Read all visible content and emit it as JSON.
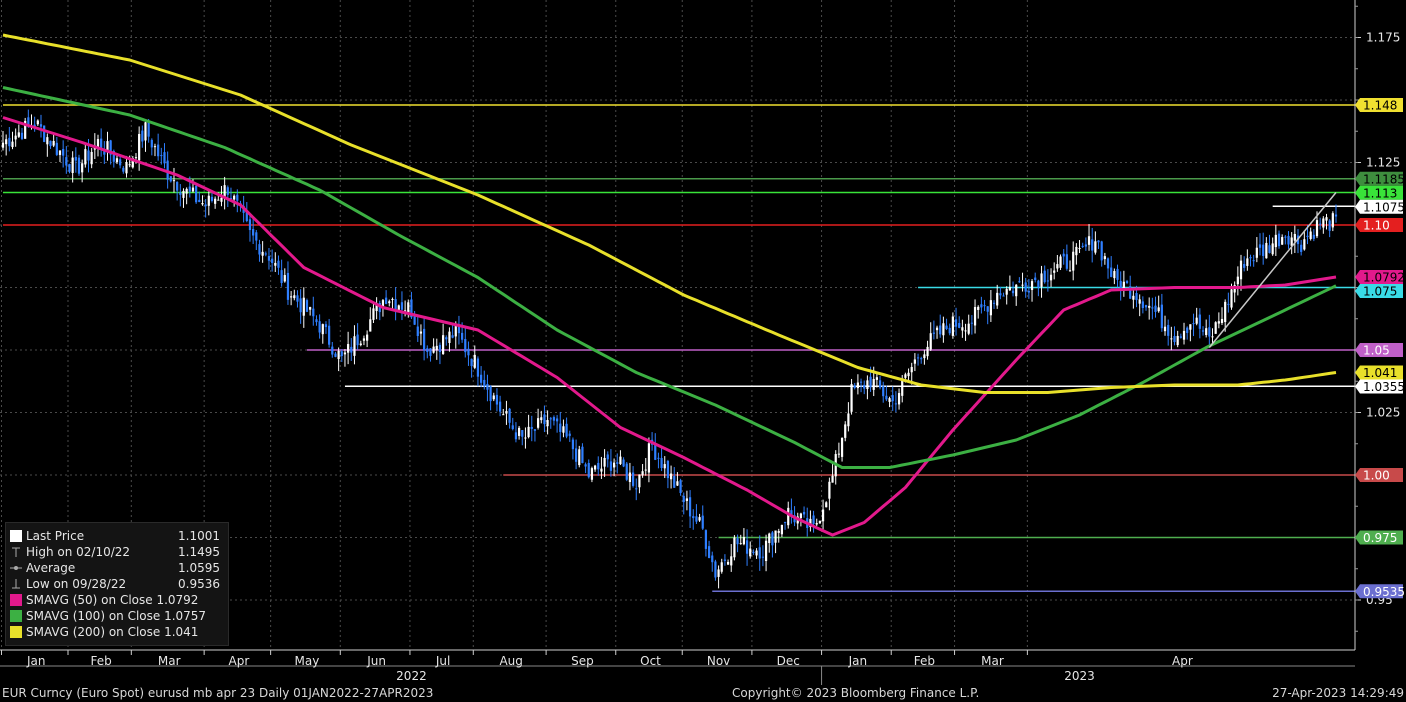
{
  "chart_data": {
    "type": "candlestick",
    "y_ticks": [
      "1.175",
      "1.125",
      "1.025",
      "0.95"
    ],
    "y_ticks_num": [
      1.175,
      1.125,
      1.025,
      0.95
    ],
    "ylim": [
      0.93,
      1.19
    ],
    "x_months": [
      "Jan",
      "Feb",
      "Mar",
      "Apr",
      "May",
      "Jun",
      "Jul",
      "Aug",
      "Sep",
      "Oct",
      "Nov",
      "Dec",
      "Jan",
      "Feb",
      "Mar",
      "Apr"
    ],
    "x_years": [
      "2022",
      "2023"
    ],
    "price_anchors": [
      [
        0,
        1.133
      ],
      [
        10,
        1.141
      ],
      [
        23,
        1.122
      ],
      [
        30,
        1.133
      ],
      [
        39,
        1.123
      ],
      [
        45,
        1.138
      ],
      [
        52,
        1.121
      ],
      [
        58,
        1.113
      ],
      [
        64,
        1.108
      ],
      [
        71,
        1.115
      ],
      [
        78,
        1.096
      ],
      [
        84,
        1.088
      ],
      [
        90,
        1.074
      ],
      [
        100,
        1.06
      ],
      [
        107,
        1.046
      ],
      [
        114,
        1.058
      ],
      [
        121,
        1.072
      ],
      [
        129,
        1.066
      ],
      [
        134,
        1.05
      ],
      [
        143,
        1.057
      ],
      [
        149,
        1.045
      ],
      [
        158,
        1.024
      ],
      [
        164,
        1.014
      ],
      [
        172,
        1.022
      ],
      [
        179,
        1.013
      ],
      [
        185,
        1.0
      ],
      [
        193,
        1.006
      ],
      [
        200,
        0.997
      ],
      [
        205,
        1.012
      ],
      [
        214,
        0.992
      ],
      [
        221,
        0.978
      ],
      [
        225,
        0.961
      ],
      [
        231,
        0.973
      ],
      [
        240,
        0.97
      ],
      [
        248,
        0.985
      ],
      [
        256,
        0.978
      ],
      [
        262,
        0.999
      ],
      [
        268,
        1.033
      ],
      [
        274,
        1.038
      ],
      [
        281,
        1.029
      ],
      [
        290,
        1.05
      ],
      [
        299,
        1.06
      ],
      [
        306,
        1.062
      ],
      [
        314,
        1.073
      ],
      [
        324,
        1.077
      ],
      [
        333,
        1.083
      ],
      [
        340,
        1.088
      ],
      [
        345,
        1.095
      ],
      [
        351,
        1.078
      ],
      [
        358,
        1.073
      ],
      [
        364,
        1.065
      ],
      [
        370,
        1.056
      ],
      [
        376,
        1.062
      ],
      [
        381,
        1.054
      ],
      [
        386,
        1.067
      ],
      [
        392,
        1.086
      ],
      [
        398,
        1.09
      ],
      [
        405,
        1.097
      ],
      [
        410,
        1.093
      ],
      [
        416,
        1.101
      ],
      [
        421,
        1.101
      ]
    ],
    "series": [
      {
        "name": "SMAVG (50)",
        "color": "#e2198c",
        "points": [
          [
            0,
            1.143
          ],
          [
            25,
            1.133
          ],
          [
            55,
            1.12
          ],
          [
            75,
            1.108
          ],
          [
            95,
            1.083
          ],
          [
            120,
            1.067
          ],
          [
            150,
            1.058
          ],
          [
            175,
            1.039
          ],
          [
            195,
            1.019
          ],
          [
            215,
            1.007
          ],
          [
            235,
            0.994
          ],
          [
            250,
            0.983
          ],
          [
            262,
            0.976
          ],
          [
            272,
            0.981
          ],
          [
            285,
            0.995
          ],
          [
            300,
            1.018
          ],
          [
            320,
            1.046
          ],
          [
            335,
            1.066
          ],
          [
            350,
            1.074
          ],
          [
            370,
            1.075
          ],
          [
            390,
            1.075
          ],
          [
            405,
            1.076
          ],
          [
            421,
            1.0792
          ]
        ]
      },
      {
        "name": "SMAVG (100)",
        "color": "#3cb043",
        "points": [
          [
            0,
            1.155
          ],
          [
            40,
            1.144
          ],
          [
            70,
            1.131
          ],
          [
            100,
            1.114
          ],
          [
            125,
            1.096
          ],
          [
            150,
            1.079
          ],
          [
            175,
            1.058
          ],
          [
            200,
            1.041
          ],
          [
            225,
            1.028
          ],
          [
            250,
            1.013
          ],
          [
            265,
            1.003
          ],
          [
            280,
            1.003
          ],
          [
            300,
            1.008
          ],
          [
            320,
            1.014
          ],
          [
            340,
            1.024
          ],
          [
            360,
            1.037
          ],
          [
            380,
            1.051
          ],
          [
            400,
            1.063
          ],
          [
            421,
            1.0757
          ]
        ]
      },
      {
        "name": "SMAVG (200)",
        "color": "#e8e02a",
        "points": [
          [
            0,
            1.176
          ],
          [
            40,
            1.166
          ],
          [
            75,
            1.152
          ],
          [
            110,
            1.132
          ],
          [
            150,
            1.112
          ],
          [
            185,
            1.092
          ],
          [
            215,
            1.072
          ],
          [
            245,
            1.056
          ],
          [
            270,
            1.043
          ],
          [
            290,
            1.036
          ],
          [
            310,
            1.033
          ],
          [
            330,
            1.033
          ],
          [
            350,
            1.035
          ],
          [
            370,
            1.036
          ],
          [
            390,
            1.036
          ],
          [
            405,
            1.038
          ],
          [
            421,
            1.041
          ]
        ]
      }
    ],
    "levels": [
      {
        "value": 1.148,
        "label": "1.148",
        "color": "#f0e030",
        "text_color": "#000000"
      },
      {
        "value": 1.1185,
        "label": "1.1185",
        "color": "#3e8e3e",
        "text_color": "#000000"
      },
      {
        "value": 1.113,
        "label": "1.113",
        "color": "#39e339",
        "text_color": "#000000"
      },
      {
        "value": 1.1075,
        "label": "1.1075",
        "color": "#ffffff",
        "text_color": "#000000"
      },
      {
        "value": 1.1,
        "label": "1.10",
        "color": "#e41f1f",
        "text_color": "#ffffff"
      },
      {
        "value": 1.0792,
        "label": "1.0792",
        "color": "#e2198c",
        "text_color": "#000000"
      },
      {
        "value": 1.075,
        "label": "1.075",
        "color": "#39dbe6",
        "text_color": "#000000"
      },
      {
        "value": 1.05,
        "label": "1.05",
        "color": "#c060c8",
        "text_color": "#ffffff"
      },
      {
        "value": 1.041,
        "label": "1.041",
        "color": "#e8e02a",
        "text_color": "#000000"
      },
      {
        "value": 1.0355,
        "label": "1.0355",
        "color": "#ffffff",
        "text_color": "#000000"
      },
      {
        "value": 1.0,
        "label": "1.00",
        "color": "#c84a4a",
        "text_color": "#ffffff"
      },
      {
        "value": 0.975,
        "label": "0.975",
        "color": "#4fae4f",
        "text_color": "#ffffff"
      },
      {
        "value": 0.9535,
        "label": "0.9535",
        "color": "#6b6fd0",
        "text_color": "#ffffff"
      }
    ],
    "hlines": [
      {
        "value": 1.148,
        "color": "#f0e030",
        "from": 0
      },
      {
        "value": 1.1185,
        "color": "#4a9a4a",
        "from": 0
      },
      {
        "value": 1.113,
        "color": "#39e339",
        "from": 0
      },
      {
        "value": 1.1075,
        "color": "#ffffff",
        "from": 401
      },
      {
        "value": 1.1,
        "color": "#e41f1f",
        "from": 0
      },
      {
        "value": 1.075,
        "color": "#39dbe6",
        "from": 289
      },
      {
        "value": 1.05,
        "color": "#c060c8",
        "from": 96
      },
      {
        "value": 1.0355,
        "color": "#ffffff",
        "from": 108
      },
      {
        "value": 1.0,
        "color": "#c84a4a",
        "from": 158
      },
      {
        "value": 0.975,
        "color": "#4fae4f",
        "from": 226
      },
      {
        "value": 0.9535,
        "color": "#6b6fd0",
        "from": 224
      }
    ],
    "trendline": {
      "color": "#c8c8c8",
      "start": [
        381,
        1.051
      ],
      "end": [
        421,
        1.113
      ]
    }
  },
  "legend": {
    "items": [
      {
        "name": "Last Price",
        "label": "Last Price",
        "value": "1.1001",
        "color": "#ffffff",
        "icon": "white-square"
      },
      {
        "name": "High",
        "label": "High on 02/10/22",
        "value": "1.1495",
        "color": "#aaaaaa",
        "icon": "high-marker"
      },
      {
        "name": "Average",
        "label": "Average",
        "value": "1.0595",
        "color": "#aaaaaa",
        "icon": "average-marker"
      },
      {
        "name": "Low",
        "label": "Low on 09/28/22",
        "value": "0.9536",
        "color": "#aaaaaa",
        "icon": "low-marker"
      },
      {
        "name": "SMAVG (50)",
        "label": "SMAVG (50)  on Close 1.0792",
        "value": "",
        "color": "#e2198c",
        "icon": "square"
      },
      {
        "name": "SMAVG (100)",
        "label": "SMAVG (100)  on Close 1.0757",
        "value": "",
        "color": "#3cb043",
        "icon": "square"
      },
      {
        "name": "SMAVG (200)",
        "label": "SMAVG (200)  on Close 1.041",
        "value": "",
        "color": "#e8e02a",
        "icon": "square"
      }
    ]
  },
  "footer": {
    "left": "EUR Curncy (Euro Spot) eurusd mb apr 23  Daily 01JAN2022-27APR2023",
    "center": "Copyright© 2023 Bloomberg Finance L.P.",
    "right": "27-Apr-2023 14:29:49"
  },
  "colors": {
    "background": "#000000",
    "grid": "#4a4a4a",
    "up": "#ffffff",
    "down": "#2f7fff",
    "axis_text": "#e6e6e6"
  }
}
